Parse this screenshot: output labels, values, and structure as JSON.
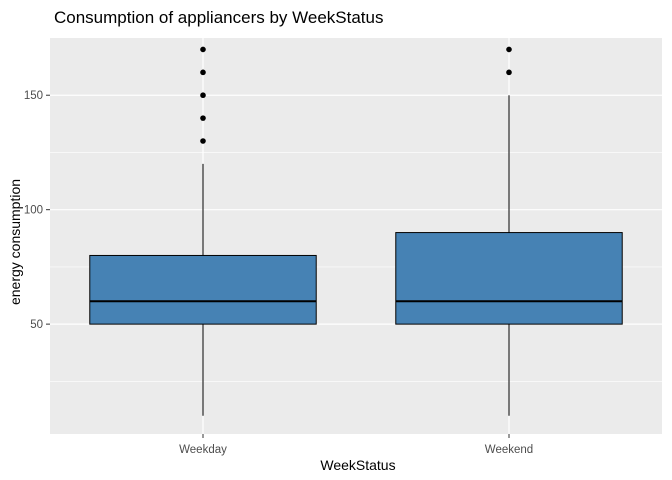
{
  "chart_data": {
    "type": "boxplot",
    "title": "Consumption of appliancers by WeekStatus",
    "xlabel": "WeekStatus",
    "ylabel": "energy consumption",
    "ylim": [
      2,
      175
    ],
    "yticks": [
      50,
      100,
      150
    ],
    "grid": true,
    "colors": {
      "panel": "#ebebeb",
      "grid": "#ffffff",
      "box_fill": "#4682b4",
      "box_stroke": "#000000",
      "outlier": "#000000"
    },
    "categories": [
      "Weekday",
      "Weekend"
    ],
    "boxes": [
      {
        "category": "Weekday",
        "whisker_low": 10,
        "q1": 50,
        "median": 60,
        "q3": 80,
        "whisker_high": 120,
        "outliers": [
          130,
          140,
          150,
          160,
          170
        ]
      },
      {
        "category": "Weekend",
        "whisker_low": 10,
        "q1": 50,
        "median": 60,
        "q3": 90,
        "whisker_high": 150,
        "outliers": [
          160,
          170
        ]
      }
    ]
  }
}
